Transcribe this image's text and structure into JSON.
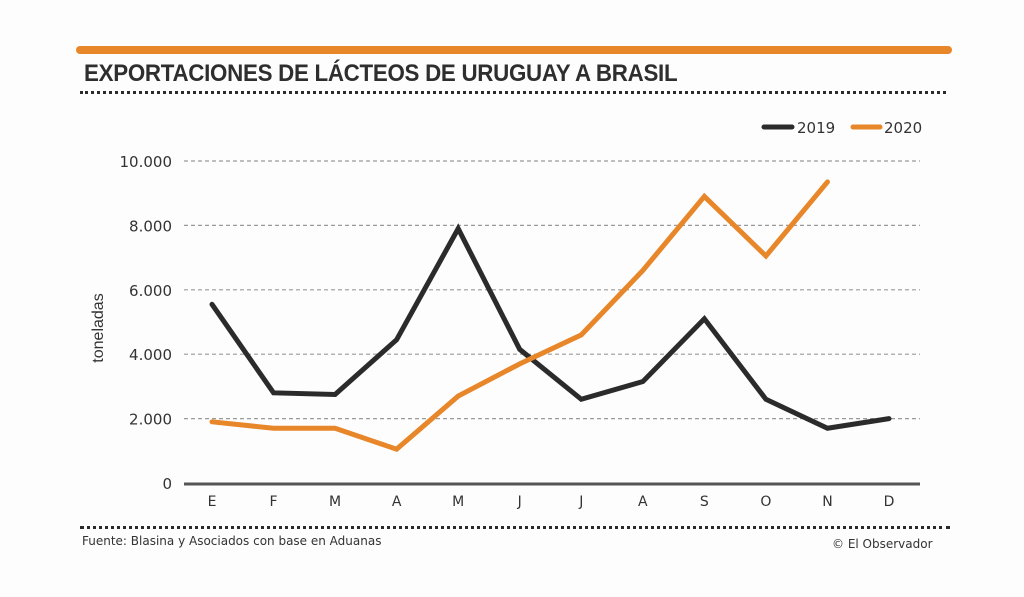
{
  "header": {
    "title": "EXPORTACIONES DE LÁCTEOS DE URUGUAY A BRASIL"
  },
  "footer": {
    "source": "Fuente: Blasina y Asociados con base en Aduanas",
    "credit": "© El Observador"
  },
  "colors": {
    "accent": "#e8862a",
    "series_2019": "#2b2b2b",
    "series_2020": "#e8862a",
    "grid": "#9a9a9a"
  },
  "chart_data": {
    "type": "line",
    "title": "EXPORTACIONES DE LÁCTEOS DE URUGUAY A BRASIL",
    "xlabel": "",
    "ylabel": "toneladas",
    "categories": [
      "E",
      "F",
      "M",
      "A",
      "M",
      "J",
      "J",
      "A",
      "S",
      "O",
      "N",
      "D"
    ],
    "ylim": [
      0,
      10000
    ],
    "yticks": [
      0,
      2000,
      4000,
      6000,
      8000,
      10000
    ],
    "ytick_labels": [
      "0",
      "2.000",
      "4.000",
      "6.000",
      "8.000",
      "10.000"
    ],
    "grid": true,
    "legend_position": "top-right",
    "series": [
      {
        "name": "2019",
        "color": "#2b2b2b",
        "values": [
          5550,
          2800,
          2750,
          4450,
          7900,
          4150,
          2600,
          3150,
          5100,
          2600,
          1700,
          2000
        ]
      },
      {
        "name": "2020",
        "color": "#e8862a",
        "values": [
          1900,
          1700,
          1700,
          1050,
          2700,
          3700,
          4600,
          6600,
          8900,
          7050,
          9350,
          null
        ]
      }
    ]
  }
}
